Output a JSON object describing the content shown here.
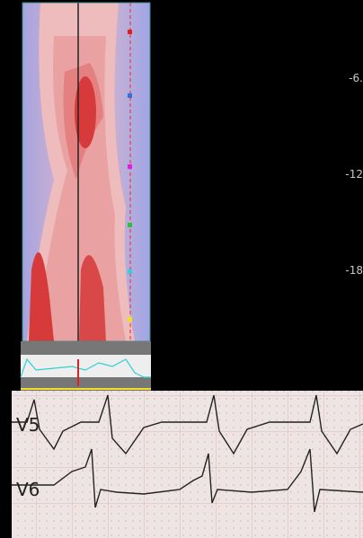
{
  "scale": {
    "labels": [
      "-6.",
      "-12",
      "-18"
    ]
  },
  "ecg": {
    "leads": [
      "V5",
      "V6"
    ]
  }
}
